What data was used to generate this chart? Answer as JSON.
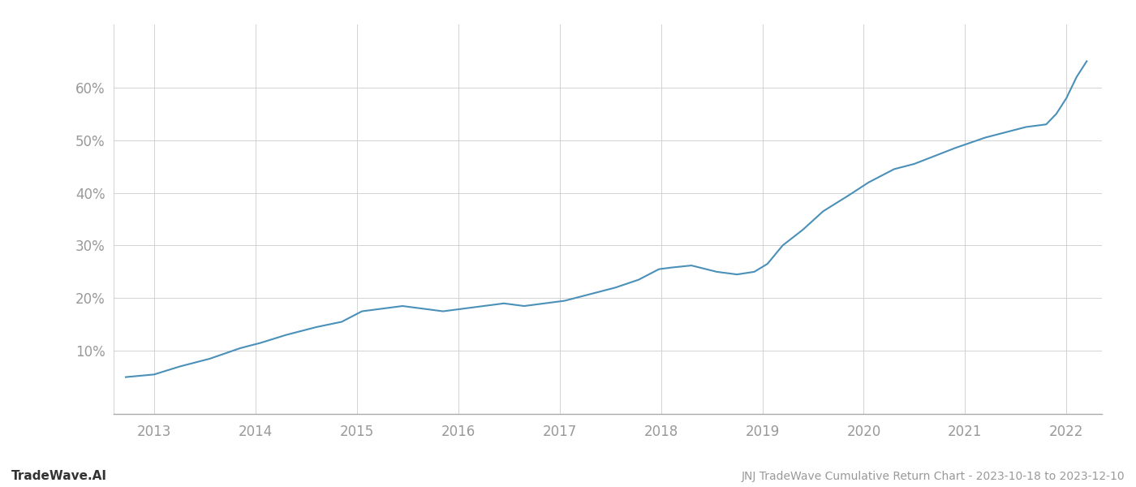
{
  "title": "JNJ TradeWave Cumulative Return Chart - 2023-10-18 to 2023-12-10",
  "watermark": "TradeWave.AI",
  "line_color": "#4a90b8",
  "line_width": 1.5,
  "background_color": "#ffffff",
  "grid_color": "#cccccc",
  "x_years": [
    2012.72,
    2013.0,
    2013.25,
    2013.55,
    2013.85,
    2014.05,
    2014.3,
    2014.6,
    2014.85,
    2015.05,
    2015.25,
    2015.45,
    2015.65,
    2015.85,
    2016.05,
    2016.25,
    2016.45,
    2016.65,
    2016.85,
    2017.05,
    2017.15,
    2017.35,
    2017.55,
    2017.78,
    2017.98,
    2018.1,
    2018.3,
    2018.55,
    2018.75,
    2018.92,
    2019.05,
    2019.2,
    2019.4,
    2019.6,
    2019.85,
    2020.05,
    2020.3,
    2020.5,
    2020.7,
    2020.9,
    2021.05,
    2021.2,
    2021.4,
    2021.6,
    2021.8,
    2021.9,
    2022.0,
    2022.1,
    2022.2
  ],
  "y_values": [
    5.0,
    5.5,
    7.0,
    8.5,
    10.5,
    11.5,
    13.0,
    14.5,
    15.5,
    17.5,
    18.0,
    18.5,
    18.0,
    17.5,
    18.0,
    18.5,
    19.0,
    18.5,
    19.0,
    19.5,
    20.0,
    21.0,
    22.0,
    23.5,
    25.5,
    25.8,
    26.2,
    25.0,
    24.5,
    25.0,
    26.5,
    30.0,
    33.0,
    36.5,
    39.5,
    42.0,
    44.5,
    45.5,
    47.0,
    48.5,
    49.5,
    50.5,
    51.5,
    52.5,
    53.0,
    55.0,
    58.0,
    62.0,
    65.0
  ],
  "xlim": [
    2012.6,
    2022.35
  ],
  "ylim": [
    -2,
    72
  ],
  "yticks": [
    10,
    20,
    30,
    40,
    50,
    60
  ],
  "xticks": [
    2013,
    2014,
    2015,
    2016,
    2017,
    2018,
    2019,
    2020,
    2021,
    2022
  ],
  "tick_label_color": "#999999",
  "tick_fontsize": 12,
  "footer_fontsize": 10,
  "footer_color": "#999999",
  "watermark_fontsize": 11,
  "watermark_color": "#333333"
}
